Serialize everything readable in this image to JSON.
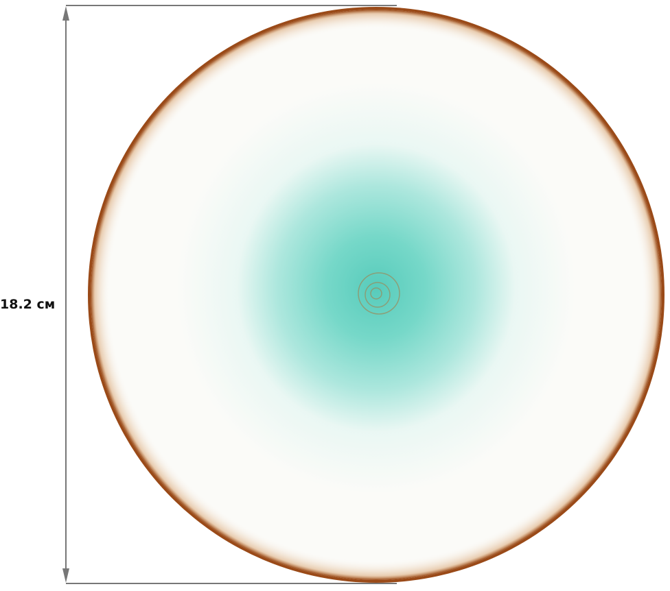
{
  "dimension": {
    "label": "18.2 см",
    "line_color": "#777777"
  },
  "plate": {
    "rim_color": "#9a4a18",
    "glaze_color": "#fbfbf8",
    "center_color": "#5fd0bf"
  }
}
